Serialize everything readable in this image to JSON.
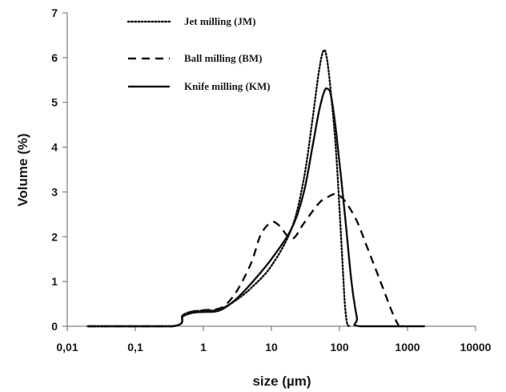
{
  "chart_data": {
    "type": "line",
    "xlabel": "size (µm)",
    "ylabel": "Volume (%)",
    "x_scale": "log",
    "xlim": [
      0.01,
      10000
    ],
    "ylim": [
      0,
      7
    ],
    "x_tick_values": [
      0.01,
      0.1,
      1,
      10,
      100,
      1000,
      10000
    ],
    "x_tick_labels": [
      "0,01",
      "0,1",
      "1",
      "10",
      "100",
      "1000",
      "10000"
    ],
    "y_ticks": [
      0,
      1,
      2,
      3,
      4,
      5,
      6,
      7
    ],
    "grid": false,
    "legend_position": "top-left",
    "series": [
      {
        "name": "Jet milling (JM)",
        "dash": "dotted",
        "points": [
          [
            0.02,
            0
          ],
          [
            0.35,
            0
          ],
          [
            0.5,
            0.25
          ],
          [
            0.7,
            0.33
          ],
          [
            1,
            0.35
          ],
          [
            1.5,
            0.36
          ],
          [
            2,
            0.42
          ],
          [
            3,
            0.58
          ],
          [
            5,
            0.85
          ],
          [
            10,
            1.35
          ],
          [
            20,
            2.2
          ],
          [
            30,
            3.3
          ],
          [
            40,
            4.6
          ],
          [
            50,
            5.7
          ],
          [
            58,
            6.15
          ],
          [
            65,
            6.0
          ],
          [
            75,
            5.2
          ],
          [
            90,
            3.8
          ],
          [
            110,
            1.5
          ],
          [
            120,
            0.5
          ],
          [
            130,
            0.05
          ],
          [
            140,
            0
          ]
        ]
      },
      {
        "name": "Ball milling (BM)",
        "dash": "dashed",
        "points": [
          [
            0.02,
            0
          ],
          [
            0.35,
            0
          ],
          [
            0.5,
            0.25
          ],
          [
            0.7,
            0.33
          ],
          [
            1,
            0.36
          ],
          [
            1.5,
            0.38
          ],
          [
            2,
            0.45
          ],
          [
            3,
            0.75
          ],
          [
            5,
            1.4
          ],
          [
            7,
            2.05
          ],
          [
            10,
            2.32
          ],
          [
            13,
            2.25
          ],
          [
            20,
            1.95
          ],
          [
            30,
            2.3
          ],
          [
            50,
            2.75
          ],
          [
            70,
            2.9
          ],
          [
            90,
            2.95
          ],
          [
            120,
            2.8
          ],
          [
            180,
            2.35
          ],
          [
            250,
            1.8
          ],
          [
            400,
            1.0
          ],
          [
            600,
            0.3
          ],
          [
            750,
            0
          ]
        ]
      },
      {
        "name": "Knife milling (KM)",
        "dash": "solid",
        "points": [
          [
            0.02,
            0
          ],
          [
            0.35,
            0
          ],
          [
            0.5,
            0.22
          ],
          [
            0.7,
            0.3
          ],
          [
            1,
            0.32
          ],
          [
            1.5,
            0.33
          ],
          [
            2,
            0.4
          ],
          [
            3,
            0.6
          ],
          [
            5,
            0.95
          ],
          [
            10,
            1.5
          ],
          [
            20,
            2.2
          ],
          [
            30,
            3.0
          ],
          [
            40,
            4.0
          ],
          [
            50,
            4.8
          ],
          [
            60,
            5.25
          ],
          [
            67,
            5.3
          ],
          [
            75,
            5.15
          ],
          [
            90,
            4.3
          ],
          [
            120,
            2.5
          ],
          [
            150,
            1.0
          ],
          [
            180,
            0.2
          ],
          [
            200,
            0
          ],
          [
            1800,
            0
          ]
        ]
      }
    ]
  }
}
